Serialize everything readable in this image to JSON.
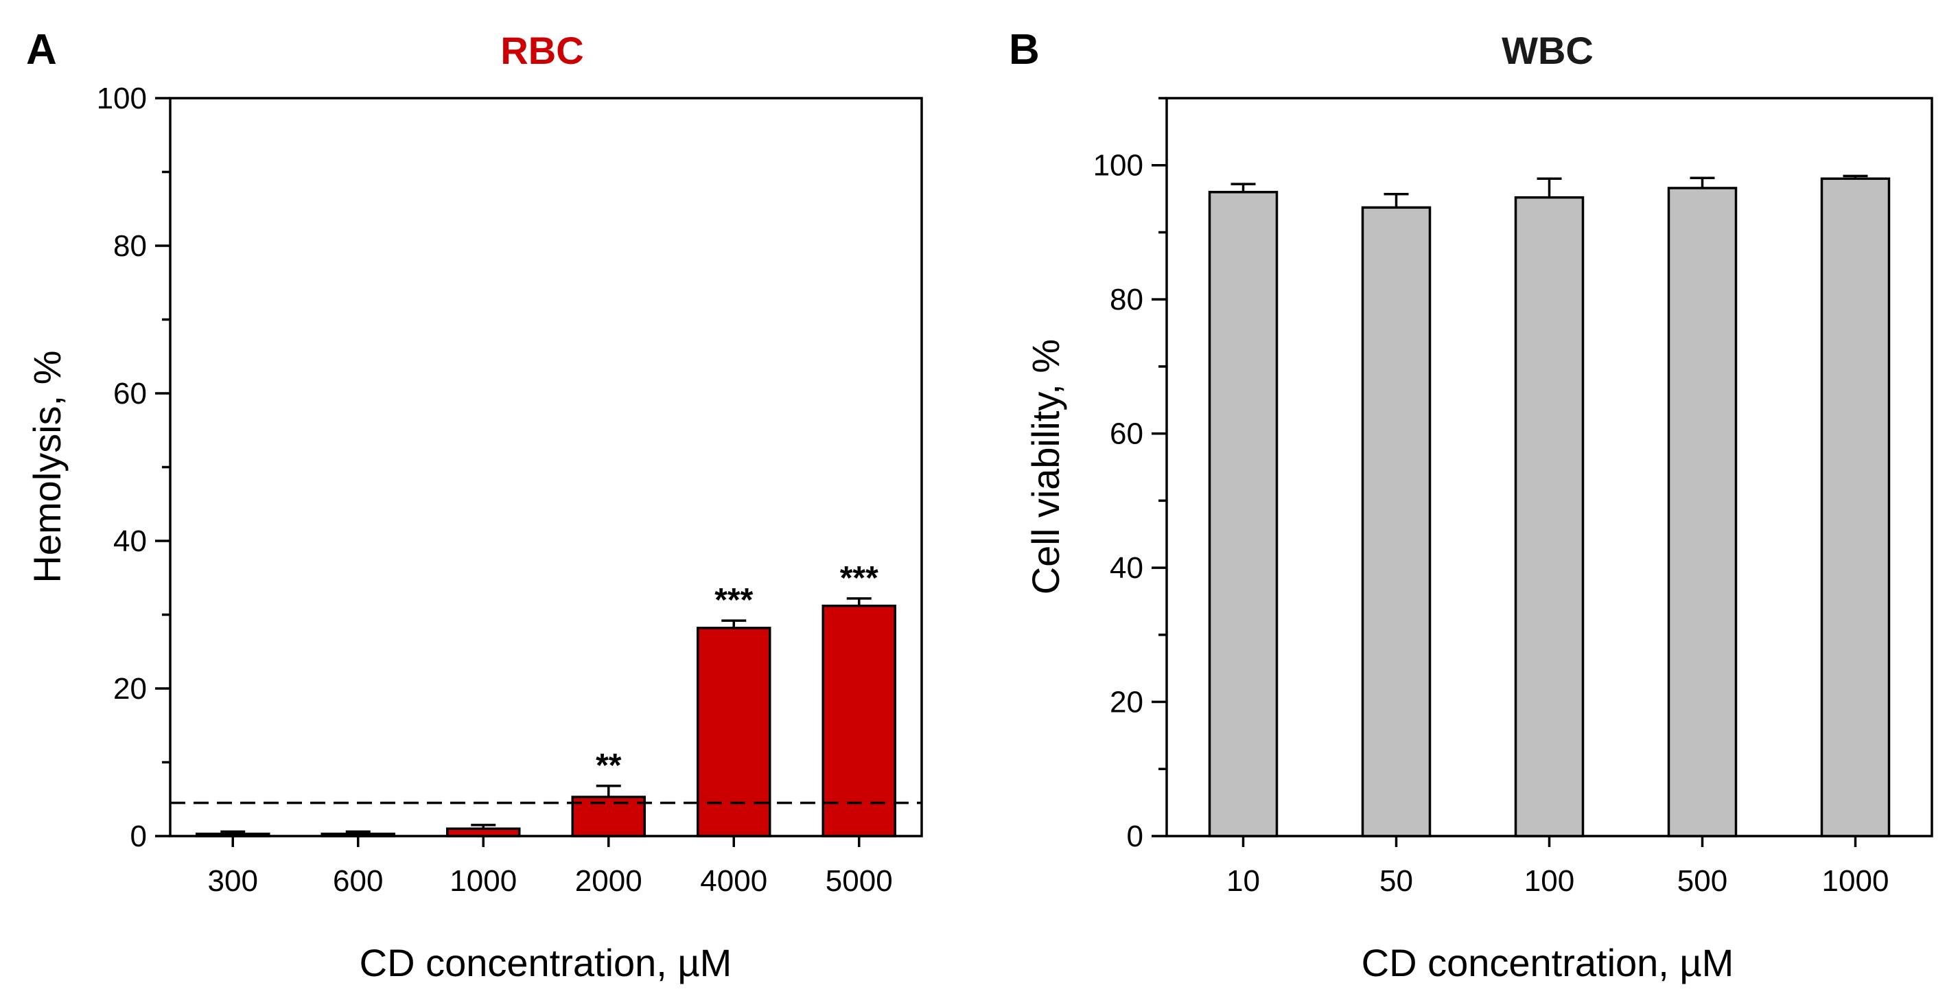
{
  "chart_data": [
    {
      "panel": "A",
      "type": "bar",
      "title": "RBC",
      "title_color": "#cc0000",
      "bar_color": "#cc0000",
      "xlabel": "CD concentration, µM",
      "ylabel": "Hemolysis, %",
      "ylim": [
        0,
        100
      ],
      "yticks": [
        0,
        20,
        40,
        60,
        80,
        100
      ],
      "categories": [
        "300",
        "600",
        "1000",
        "2000",
        "4000",
        "5000"
      ],
      "values": [
        0.3,
        0.3,
        1.0,
        5.3,
        28.2,
        31.2
      ],
      "errors": [
        0.3,
        0.3,
        0.5,
        1.5,
        1.0,
        1.0
      ],
      "significance": [
        "",
        "",
        "",
        "**",
        "***",
        "***"
      ],
      "reference_line": {
        "y": 4.5,
        "style": "dashed"
      }
    },
    {
      "panel": "B",
      "type": "bar",
      "title": "WBC",
      "title_color": "#1a1a1a",
      "bar_color": "#c0c0c0",
      "xlabel": "CD concentration, µM",
      "ylabel": "Cell viability, %",
      "ylim": [
        0,
        110
      ],
      "yticks": [
        0,
        20,
        40,
        60,
        80,
        100
      ],
      "categories": [
        "10",
        "50",
        "100",
        "500",
        "1000"
      ],
      "values": [
        96.0,
        93.7,
        95.2,
        96.6,
        98.0
      ],
      "errors": [
        1.2,
        2.0,
        2.8,
        1.5,
        0.4
      ],
      "significance": [
        "",
        "",
        "",
        "",
        ""
      ]
    }
  ]
}
